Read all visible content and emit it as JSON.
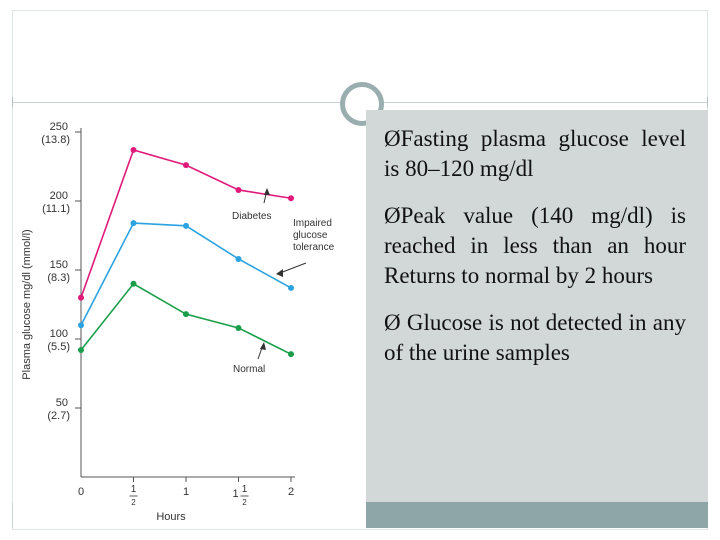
{
  "slide": {
    "bullets": [
      {
        "marker": "Ø",
        "text": "Fasting plasma glucose level is 80–120 mg/dl"
      },
      {
        "marker": "Ø",
        "text": "Peak value (140 mg/dl) is reached in less than an hour Returns to normal by 2 hours"
      },
      {
        "marker": "Ø ",
        "text": "Glucose is not detected in any of the urine samples"
      }
    ]
  },
  "chart_data": {
    "type": "line",
    "xlabel": "Hours",
    "ylabel": "Plasma glucose mg/dl (mmol/l)",
    "xlim": [
      0,
      2
    ],
    "ylim": [
      0,
      250
    ],
    "x": [
      0,
      0.5,
      1,
      1.5,
      2
    ],
    "x_ticks": [
      {
        "value": 0,
        "label": "0",
        "frac": ""
      },
      {
        "value": 0.5,
        "label": "",
        "frac": "1/2"
      },
      {
        "value": 1,
        "label": "1",
        "frac": ""
      },
      {
        "value": 1.5,
        "label": "1",
        "frac": "1/2"
      },
      {
        "value": 2,
        "label": "2",
        "frac": ""
      }
    ],
    "y_ticks": [
      {
        "value": 250,
        "label": "250",
        "sub": "(13.8)"
      },
      {
        "value": 200,
        "label": "200",
        "sub": "(11.1)"
      },
      {
        "value": 150,
        "label": "150",
        "sub": "(8.3)"
      },
      {
        "value": 100,
        "label": "100",
        "sub": "(5.5)"
      },
      {
        "value": 50,
        "label": "50",
        "sub": "(2.7)"
      }
    ],
    "series": [
      {
        "name": "Diabetes",
        "color": "#e0197a",
        "values": [
          130,
          237,
          226,
          208,
          202
        ]
      },
      {
        "name": "Impaired glucose tolerance",
        "color": "#2aa3e0",
        "values": [
          110,
          184,
          182,
          158,
          137
        ]
      },
      {
        "name": "Normal",
        "color": "#1a9e4a",
        "values": [
          92,
          140,
          118,
          108,
          89
        ]
      }
    ],
    "grid": false
  }
}
